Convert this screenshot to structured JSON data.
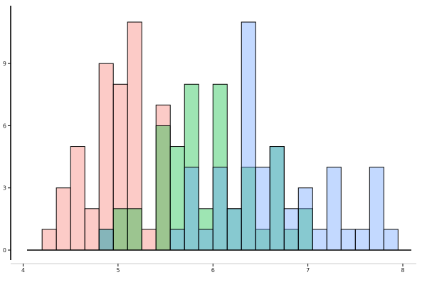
{
  "chart_data": {
    "type": "histogram",
    "title": "",
    "xlabel": "",
    "ylabel": "",
    "xlim": [
      4.0,
      8.1
    ],
    "ylim": [
      0,
      11
    ],
    "xticks": [
      4,
      5,
      6,
      7,
      8
    ],
    "yticks": [
      0,
      3,
      6,
      9
    ],
    "bin_start": 4.2,
    "bin_width": 0.15,
    "bar_opacity": 0.38,
    "grid": false,
    "legend": "none",
    "series": [
      {
        "color": "#f8766d",
        "counts": [
          1,
          3,
          5,
          2,
          9,
          8,
          11,
          1,
          7,
          0,
          0,
          0,
          0,
          0,
          0,
          0,
          0,
          0,
          0,
          0,
          0,
          0,
          0,
          0,
          0
        ]
      },
      {
        "color": "#00ba38",
        "counts": [
          0,
          0,
          0,
          0,
          1,
          2,
          2,
          0,
          6,
          5,
          8,
          2,
          8,
          2,
          4,
          1,
          5,
          1,
          2,
          0,
          0,
          0,
          0,
          0,
          0
        ]
      },
      {
        "color": "#619cff",
        "counts": [
          0,
          0,
          0,
          0,
          1,
          0,
          0,
          0,
          0,
          1,
          4,
          1,
          4,
          2,
          11,
          4,
          5,
          2,
          3,
          1,
          4,
          1,
          1,
          4,
          1
        ]
      }
    ]
  }
}
